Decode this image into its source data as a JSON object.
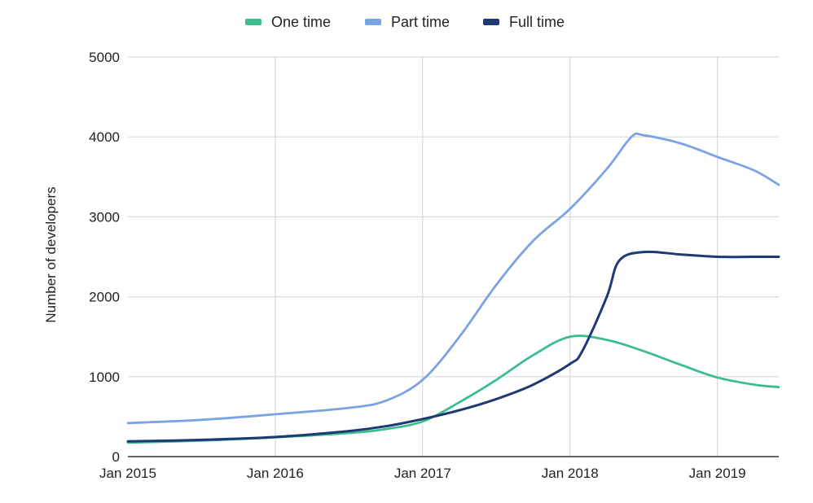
{
  "chart_data": {
    "type": "line",
    "title": "",
    "xlabel": "",
    "ylabel": "Number of developers",
    "xlim": [
      "2015-01",
      "2019-06"
    ],
    "ylim": [
      0,
      5000
    ],
    "y_ticks": [
      0,
      1000,
      2000,
      3000,
      4000,
      5000
    ],
    "x_ticks": [
      "2015-01",
      "2016-01",
      "2017-01",
      "2018-01",
      "2019-01"
    ],
    "x_tick_labels": [
      "Jan 2015",
      "Jan 2016",
      "Jan 2017",
      "Jan 2018",
      "Jan 2019"
    ],
    "grid": true,
    "legend_position": "top-center",
    "series": [
      {
        "name": "One time",
        "color": "#3dbd8c",
        "points": [
          [
            "2015-01",
            175
          ],
          [
            "2015-07",
            200
          ],
          [
            "2016-01",
            240
          ],
          [
            "2016-07",
            295
          ],
          [
            "2016-10",
            345
          ],
          [
            "2017-01",
            440
          ],
          [
            "2017-04",
            680
          ],
          [
            "2017-07",
            960
          ],
          [
            "2017-10",
            1270
          ],
          [
            "2018-01",
            1500
          ],
          [
            "2018-04",
            1460
          ],
          [
            "2018-07",
            1320
          ],
          [
            "2018-10",
            1150
          ],
          [
            "2019-01",
            990
          ],
          [
            "2019-04",
            900
          ],
          [
            "2019-06",
            870
          ]
        ]
      },
      {
        "name": "Part time",
        "color": "#7aa3e5",
        "points": [
          [
            "2015-01",
            420
          ],
          [
            "2015-07",
            460
          ],
          [
            "2016-01",
            530
          ],
          [
            "2016-07",
            610
          ],
          [
            "2016-10",
            700
          ],
          [
            "2017-01",
            960
          ],
          [
            "2017-04",
            1500
          ],
          [
            "2017-07",
            2150
          ],
          [
            "2017-10",
            2700
          ],
          [
            "2018-01",
            3100
          ],
          [
            "2018-04",
            3600
          ],
          [
            "2018-06",
            4000
          ],
          [
            "2018-07",
            4020
          ],
          [
            "2018-10",
            3920
          ],
          [
            "2019-01",
            3750
          ],
          [
            "2019-04",
            3580
          ],
          [
            "2019-06",
            3400
          ]
        ]
      },
      {
        "name": "Full time",
        "color": "#1f3a73",
        "points": [
          [
            "2015-01",
            190
          ],
          [
            "2015-07",
            210
          ],
          [
            "2016-01",
            245
          ],
          [
            "2016-07",
            320
          ],
          [
            "2016-10",
            380
          ],
          [
            "2017-01",
            470
          ],
          [
            "2017-04",
            580
          ],
          [
            "2017-07",
            720
          ],
          [
            "2017-10",
            900
          ],
          [
            "2018-01",
            1160
          ],
          [
            "2018-02",
            1320
          ],
          [
            "2018-04",
            2000
          ],
          [
            "2018-05",
            2450
          ],
          [
            "2018-07",
            2560
          ],
          [
            "2018-10",
            2530
          ],
          [
            "2019-01",
            2500
          ],
          [
            "2019-04",
            2500
          ],
          [
            "2019-06",
            2500
          ]
        ]
      }
    ]
  }
}
